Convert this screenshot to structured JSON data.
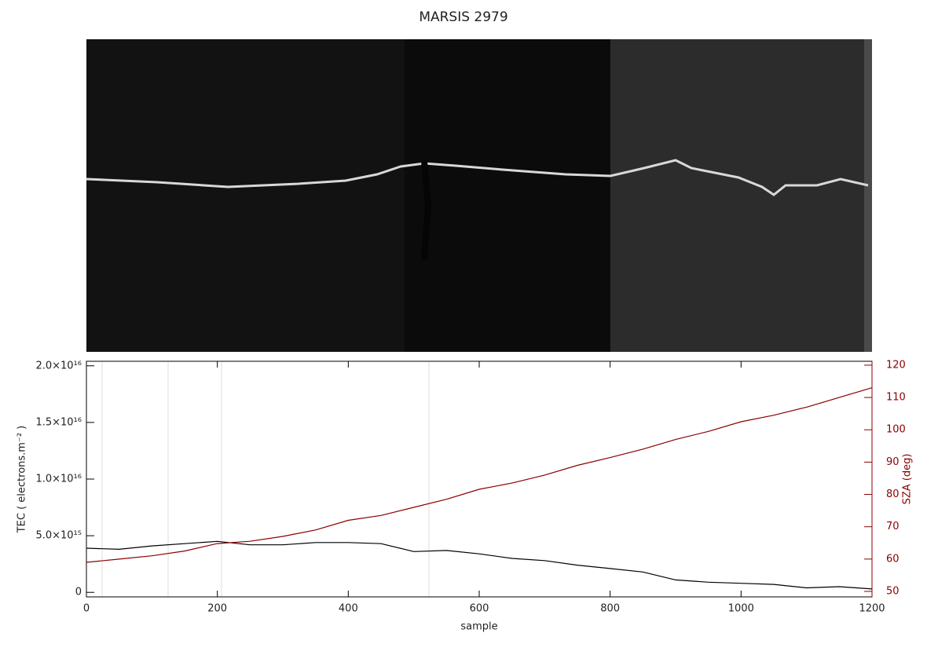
{
  "chart_data": {
    "type": "line",
    "title": "MARSIS 2979",
    "xlabel": "sample",
    "ylabel": "TEC ( electrons.m⁻² )",
    "y2label": "SZA (deg)",
    "x": [
      0,
      50,
      100,
      150,
      200,
      250,
      300,
      350,
      400,
      450,
      500,
      550,
      600,
      650,
      700,
      750,
      800,
      850,
      900,
      950,
      1000,
      1050,
      1100,
      1150,
      1200
    ],
    "xlim": [
      0,
      1200
    ],
    "xticks": [
      0,
      200,
      400,
      600,
      800,
      1000,
      1200
    ],
    "ylim": [
      -400000000000000.0,
      2.04e+16
    ],
    "yticks": [
      0,
      {
        "value": 5000000000000000.0,
        "label": "5.0×10¹⁵"
      },
      {
        "value": 1e+16,
        "label": "1.0×10¹⁶"
      },
      {
        "value": 1.5e+16,
        "label": "1.5×10¹⁶"
      },
      {
        "value": 2e+16,
        "label": "2.0×10¹⁶"
      }
    ],
    "y2lim": [
      48.3,
      121.2
    ],
    "y2ticks": [
      50,
      60,
      70,
      80,
      90,
      100,
      110,
      120
    ],
    "y2color": "#8b0000",
    "series": [
      {
        "name": "TEC",
        "color": "#000000",
        "values": [
          3900000000000000.0,
          3800000000000000.0,
          4100000000000000.0,
          4300000000000000.0,
          4500000000000000.0,
          4200000000000000.0,
          4200000000000000.0,
          4400000000000000.0,
          4400000000000000.0,
          4300000000000000.0,
          3600000000000000.0,
          3700000000000000.0,
          3400000000000000.0,
          3000000000000000.0,
          2800000000000000.0,
          2400000000000000.0,
          2100000000000000.0,
          1800000000000000.0,
          1100000000000000.0,
          900000000000000.0,
          800000000000000.0,
          700000000000000.0,
          400000000000000.0,
          500000000000000.0,
          300000000000000.0
        ]
      },
      {
        "name": "SZA",
        "color": "#8b0000",
        "axis": "y2",
        "values": [
          59,
          60,
          61,
          62.5,
          64.8,
          65.5,
          67,
          69,
          72,
          73.5,
          76,
          78.5,
          81.6,
          83.5,
          86,
          89,
          91.4,
          94,
          97,
          99.5,
          102.5,
          104.5,
          107,
          110,
          113
        ]
      }
    ]
  }
}
